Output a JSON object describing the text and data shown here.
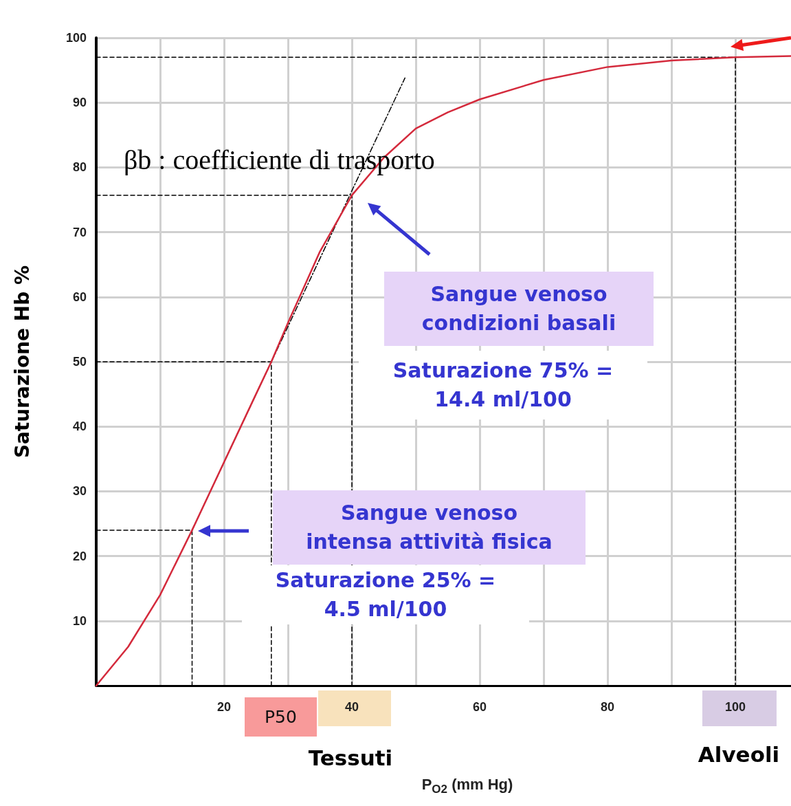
{
  "chart_data": {
    "type": "line",
    "xlabel": "P$_{O2}$ (mm Hg)",
    "ylabel": "Saturazione Hb %",
    "xlim": [
      0,
      108.7
    ],
    "ylim": [
      0,
      100
    ],
    "xticks": [
      {
        "value": 10,
        "label": null
      },
      20,
      {
        "value": 30,
        "label": null
      },
      40,
      {
        "value": 50,
        "label": null
      },
      60,
      {
        "value": 70,
        "label": null
      },
      80,
      {
        "value": 90,
        "label": null
      },
      100
    ],
    "yticks": [
      10,
      20,
      30,
      40,
      50,
      60,
      70,
      80,
      90,
      100
    ],
    "grid": true,
    "marker": "none",
    "series": [
      {
        "color": "#d42a3c",
        "x": [
          0,
          5,
          10,
          15,
          20,
          25,
          27.4,
          30,
          35,
          40,
          45,
          50,
          55,
          60,
          70,
          80,
          90,
          100,
          108.7
        ],
        "values": [
          0,
          6,
          14,
          24,
          34.5,
          45,
          50,
          56,
          67,
          75.7,
          81.5,
          86,
          88.5,
          90.5,
          93.5,
          95.5,
          96.5,
          97,
          97.2
        ]
      },
      {
        "color": "#000000",
        "line_style": "dashed",
        "x": [
          0,
          100,
          100
        ],
        "values": [
          97,
          97,
          0
        ]
      },
      {
        "color": "#000000",
        "line_style": "dashed",
        "x": [
          0,
          40,
          40
        ],
        "values": [
          75.7,
          75.7,
          0
        ]
      },
      {
        "color": "#000000",
        "line_style": "dashed",
        "x": [
          0,
          27.4,
          27.4
        ],
        "values": [
          50,
          50,
          0
        ]
      },
      {
        "color": "#000000",
        "line_style": "dashed",
        "x": [
          0,
          15,
          15
        ],
        "values": [
          24,
          24,
          0
        ]
      },
      {
        "color": "#000000",
        "line_style": "dotted",
        "x": [
          15,
          48.3
        ],
        "values": [
          24,
          93.8
        ]
      }
    ],
    "annotations": [
      "βb : coefficiente di trasporto",
      "Sangue venoso\ncondizioni basali",
      "Saturazione 75% =\n14.4 ml/100",
      "Sangue venoso\nintensa attività fisica",
      "Saturazione 25% =\n4.5 ml/100",
      "P50",
      "Tessuti",
      "Alveoli"
    ]
  }
}
